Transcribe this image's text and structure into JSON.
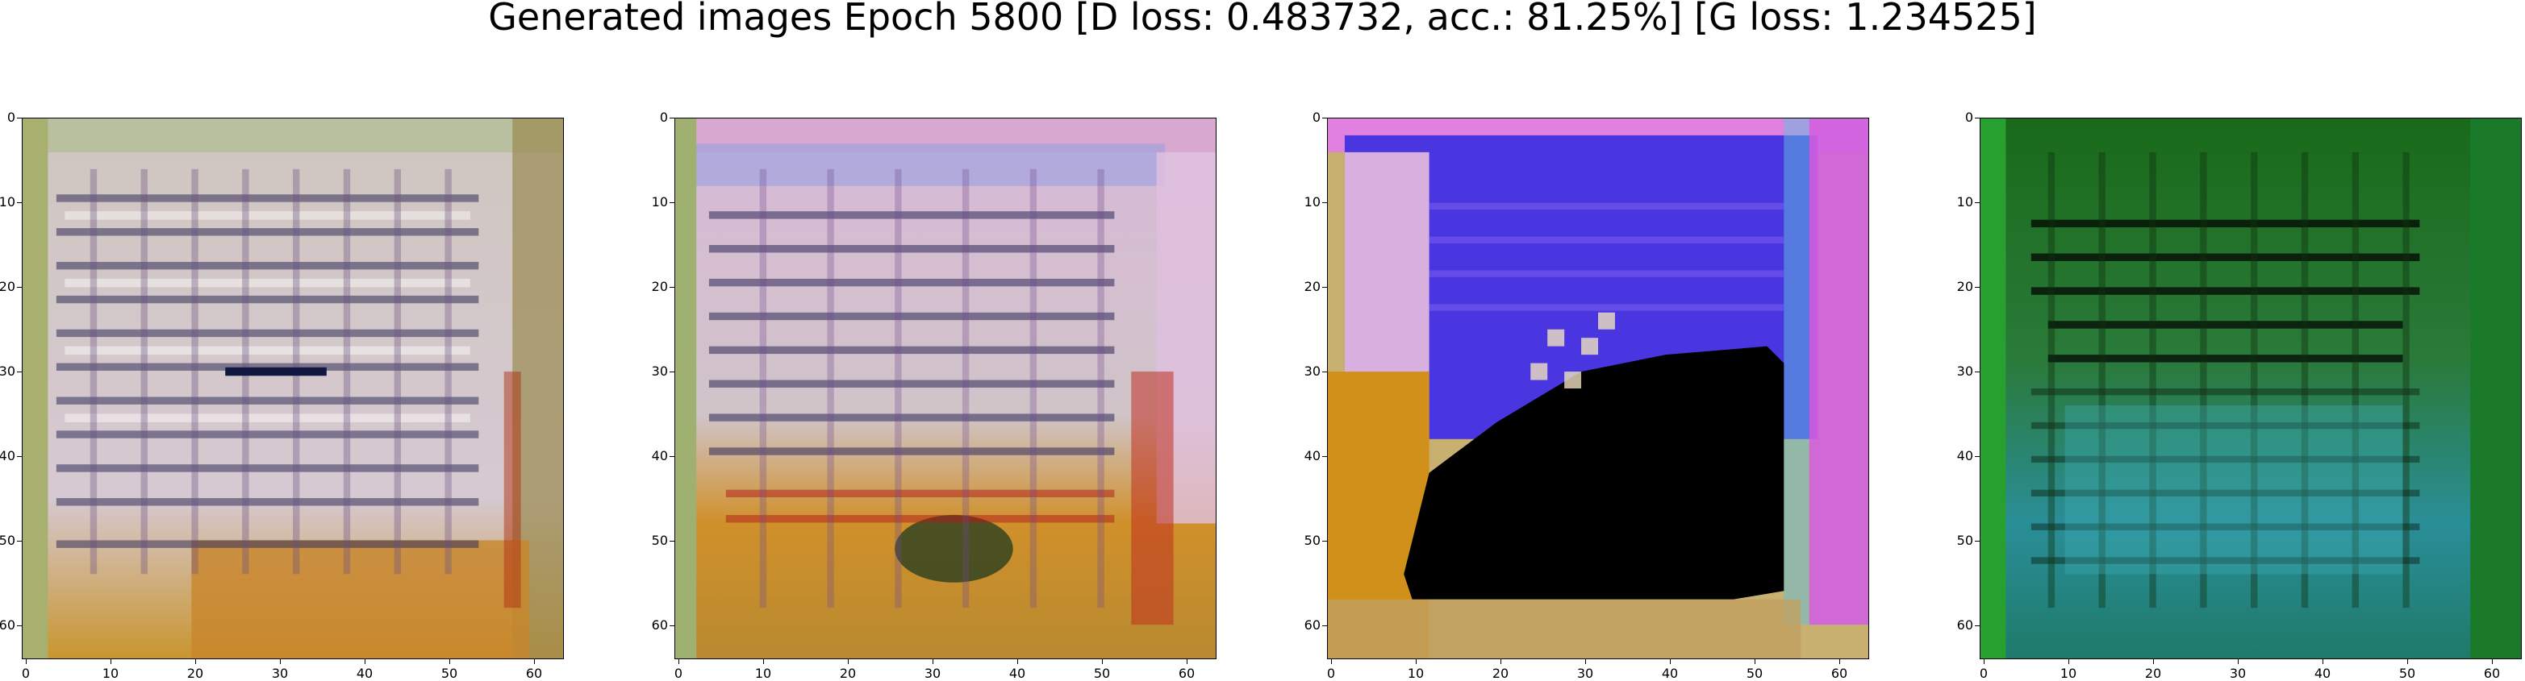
{
  "title": "Generated images Epoch 5800 [D loss: 0.483732, acc.: 81.25%] [G loss: 1.234525]",
  "axes": {
    "x_ticks": [
      "0",
      "10",
      "20",
      "30",
      "40",
      "50",
      "60"
    ],
    "y_ticks": [
      "0",
      "10",
      "20",
      "30",
      "40",
      "50",
      "60"
    ],
    "range": [
      0,
      64
    ]
  },
  "panels": [
    {
      "id": "sample-1",
      "base": "#d8c8c8",
      "stripe": "#3a3050",
      "edge": "#8a9a40",
      "lower": "#c8902a"
    },
    {
      "id": "sample-2",
      "base": "#d8c0d0",
      "stripe": "#302a50",
      "edge": "#90a050",
      "lower": "#c88a2a"
    },
    {
      "id": "sample-3",
      "base": "#4030e0",
      "stripe": "#e0c0e0",
      "edge": "#c8a040",
      "lower": "#000000"
    },
    {
      "id": "sample-4",
      "base": "#1e7a2a",
      "stripe": "#050805",
      "edge": "#2a9a3a",
      "lower": "#2a9aa0"
    }
  ]
}
